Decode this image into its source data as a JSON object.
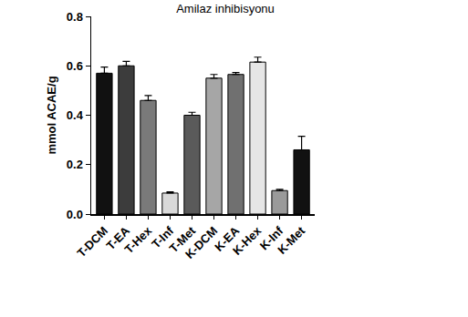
{
  "chart_data": {
    "type": "bar",
    "title": "Amilaz inhibisyonu",
    "y_label": "mmol ACAE/g",
    "categories": [
      "T-DCM",
      "T-EA",
      "T-Hex",
      "T-Inf",
      "T-Met",
      "K-DCM",
      "K-EA",
      "K-Hex",
      "K-Inf",
      "K-Met"
    ],
    "values": [
      0.57,
      0.6,
      0.46,
      0.085,
      0.4,
      0.55,
      0.565,
      0.615,
      0.095,
      0.26
    ],
    "errors": [
      0.025,
      0.018,
      0.02,
      0.005,
      0.012,
      0.015,
      0.008,
      0.02,
      0.005,
      0.055
    ],
    "colors": [
      "#111111",
      "#3c3c3c",
      "#7a7a7a",
      "#d9d9d9",
      "#5a5a5a",
      "#a6a6a6",
      "#707070",
      "#e6e6e6",
      "#9a9a9a",
      "#111111"
    ],
    "ylim": [
      0,
      0.8
    ],
    "yticks": [
      {
        "value": 0,
        "label": "0.0"
      },
      0.2,
      0.4,
      0.6,
      0.8
    ],
    "grid": false
  }
}
